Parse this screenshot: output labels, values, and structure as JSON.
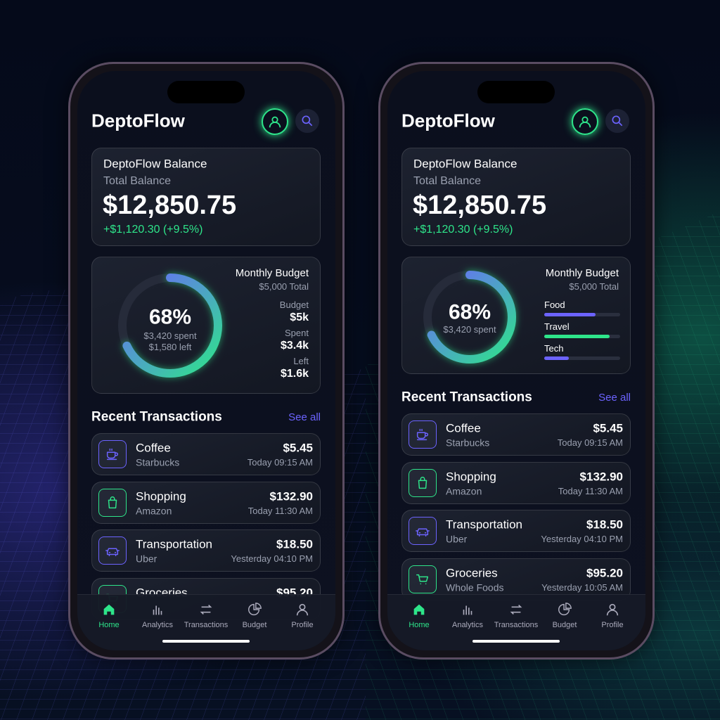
{
  "phones": [
    {
      "app_title": "DeptoFlow",
      "balance": {
        "title": "DeptoFlow Balance",
        "label": "Total Balance",
        "amount": "$12,850.75",
        "change": "+$1,120.30 (+9.5%)"
      },
      "budget": {
        "title": "Monthly Budget",
        "total": "$5,000 Total",
        "ring": {
          "value": 68,
          "label": "68%"
        },
        "spent_line": "$3,420 spent",
        "left_line": "$1,580 left",
        "stats": [
          {
            "label": "Budget",
            "value": "$5k"
          },
          {
            "label": "Spent",
            "value": "$3.4k"
          },
          {
            "label": "Left",
            "value": "$1.6k"
          }
        ]
      },
      "transactions": {
        "title": "Recent Transactions",
        "see_all": "See all",
        "items": [
          {
            "name": "Coffee",
            "merchant": "Starbucks",
            "amount": "$5.45",
            "time": "Today 09:15 AM"
          },
          {
            "name": "Shopping",
            "merchant": "Amazon",
            "amount": "$132.90",
            "time": "Today 11:30 AM"
          },
          {
            "name": "Transportation",
            "merchant": "Uber",
            "amount": "$18.50",
            "time": "Yesterday 04:10 PM"
          },
          {
            "name": "Groceries",
            "amount": "$95.20"
          }
        ]
      },
      "nav": [
        "Home",
        "Analytics",
        "Transactions",
        "Budget",
        "Profile"
      ]
    },
    {
      "app_title": "DeptoFlow",
      "balance": {
        "title": "DeptoFlow Balance",
        "label": "Total Balance",
        "amount": "$12,850.75",
        "change": "+$1,120.30 (+9.5%)"
      },
      "budget": {
        "title": "Monthly Budget",
        "total": "$5,000 Total",
        "ring": {
          "value": 68,
          "label": "68%"
        },
        "spent_line": "$3,420 spent",
        "categories": [
          {
            "label": "Food",
            "fill": 68
          },
          {
            "label": "Travel",
            "fill": 86
          },
          {
            "label": "Tech",
            "fill": 32
          }
        ]
      },
      "transactions": {
        "title": "Recent Transactions",
        "see_all": "See all",
        "items": [
          {
            "name": "Coffee",
            "merchant": "Starbucks",
            "amount": "$5.45",
            "time": "Today 09:15 AM"
          },
          {
            "name": "Shopping",
            "merchant": "Amazon",
            "amount": "$132.90",
            "time": "Today 11:30 AM"
          },
          {
            "name": "Transportation",
            "merchant": "Uber",
            "amount": "$18.50",
            "time": "Yesterday 04:10 PM"
          },
          {
            "name": "Groceries",
            "merchant": "Whole Foods",
            "amount": "$95.20",
            "time": "Yesterday 10:05 AM"
          }
        ]
      },
      "nav": [
        "Home",
        "Analytics",
        "Transactions",
        "Budget",
        "Profile"
      ]
    }
  ]
}
